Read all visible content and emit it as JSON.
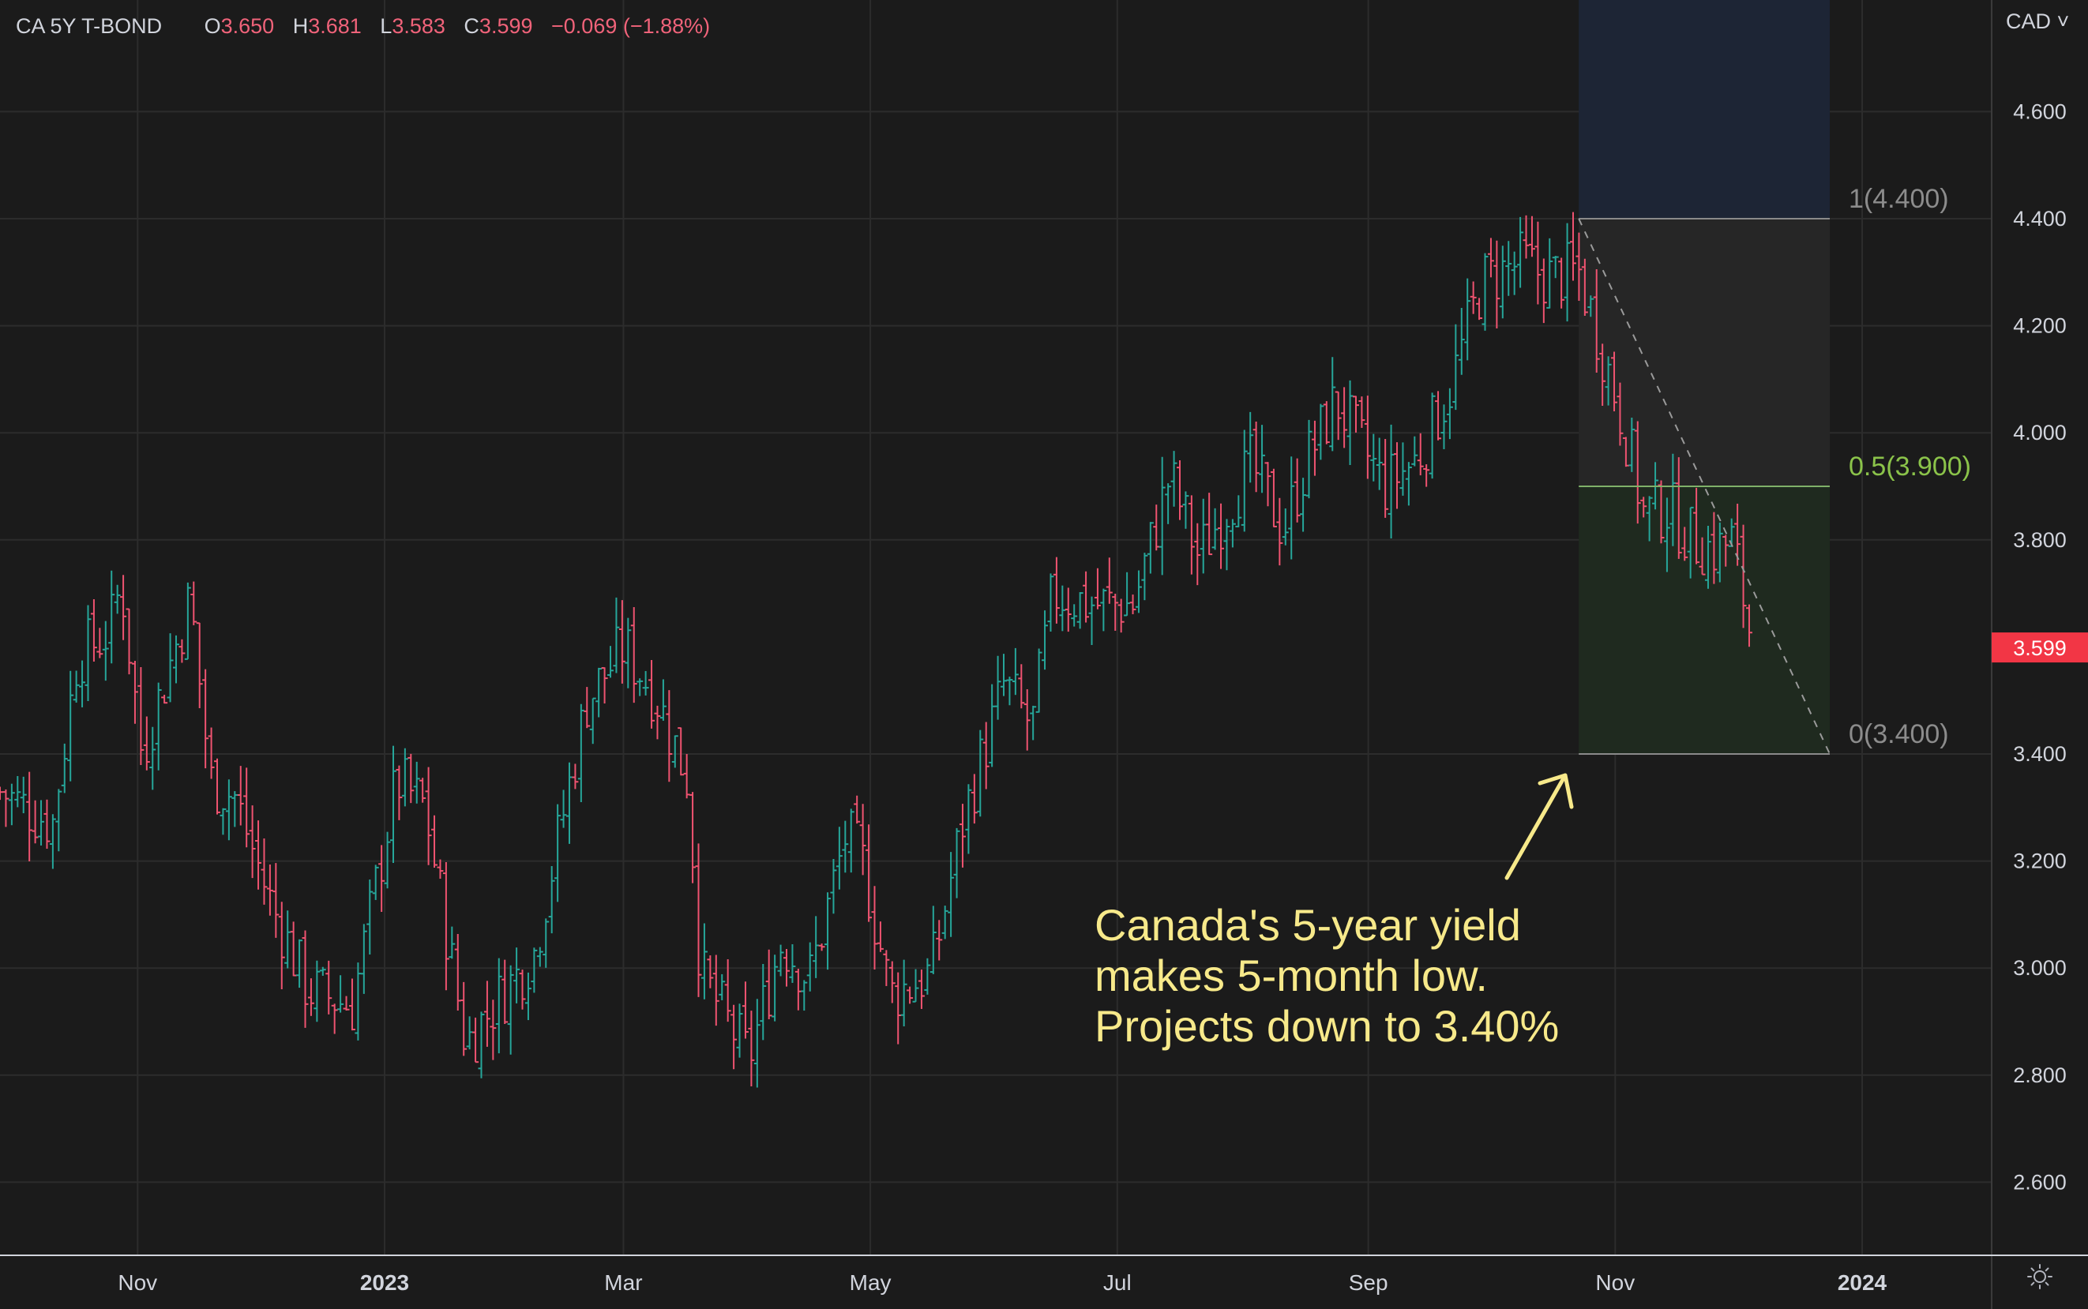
{
  "legend": {
    "symbol": "CA 5Y T-BOND",
    "open_label": "O",
    "open": "3.650",
    "high_label": "H",
    "high": "3.681",
    "low_label": "L",
    "low": "3.583",
    "close_label": "C",
    "close": "3.599",
    "change": "−0.069 (−1.88%)"
  },
  "currency": "CAD ˅",
  "annotation": {
    "lines": [
      "Canada's 5-year yield",
      "makes 5-month low.",
      "Projects down to 3.40%"
    ]
  },
  "colors": {
    "background": "#1b1b1b",
    "grid": "#2c2c2c",
    "up": "#26a69a",
    "down": "#ef5370",
    "annotation": "#f7e98a",
    "price_badge": "#f23645"
  },
  "chart_data": {
    "type": "ohlc",
    "title": "CA 5Y T-BOND",
    "currency": "CAD",
    "ylim": [
      2.5,
      4.75
    ],
    "y_ticks": [
      "4.600",
      "4.400",
      "4.200",
      "4.000",
      "3.800",
      "3.400",
      "3.200",
      "3.000",
      "2.800",
      "2.600"
    ],
    "current_price": "3.599",
    "x_range_days": [
      0,
      460
    ],
    "x_ticks": [
      {
        "label": "Nov",
        "day": 34,
        "bold": false
      },
      {
        "label": "2023",
        "day": 95,
        "bold": true
      },
      {
        "label": "Mar",
        "day": 154,
        "bold": false
      },
      {
        "label": "May",
        "day": 215,
        "bold": false
      },
      {
        "label": "Jul",
        "day": 276,
        "bold": false
      },
      {
        "label": "Sep",
        "day": 338,
        "bold": false
      },
      {
        "label": "Nov",
        "day": 399,
        "bold": false
      },
      {
        "label": "2024",
        "day": 460,
        "bold": true
      }
    ],
    "waypoints": [
      [
        0,
        3.33
      ],
      [
        13,
        3.27
      ],
      [
        19,
        3.58
      ],
      [
        27,
        3.63
      ],
      [
        30,
        3.72
      ],
      [
        35,
        3.4
      ],
      [
        47,
        3.69
      ],
      [
        52,
        3.35
      ],
      [
        58,
        3.32
      ],
      [
        67,
        3.12
      ],
      [
        76,
        2.96
      ],
      [
        87,
        2.93
      ],
      [
        98,
        3.35
      ],
      [
        105,
        3.3
      ],
      [
        115,
        2.86
      ],
      [
        124,
        2.95
      ],
      [
        132,
        3.03
      ],
      [
        145,
        3.5
      ],
      [
        154,
        3.6
      ],
      [
        162,
        3.51
      ],
      [
        170,
        3.35
      ],
      [
        173,
        2.99
      ],
      [
        185,
        2.83
      ],
      [
        193,
        3.05
      ],
      [
        200,
        2.98
      ],
      [
        209,
        3.25
      ],
      [
        213,
        3.2
      ],
      [
        220,
        2.95
      ],
      [
        230,
        2.99
      ],
      [
        238,
        3.28
      ],
      [
        248,
        3.53
      ],
      [
        255,
        3.45
      ],
      [
        260,
        3.7
      ],
      [
        270,
        3.68
      ],
      [
        280,
        3.68
      ],
      [
        289,
        3.92
      ],
      [
        296,
        3.77
      ],
      [
        309,
        3.94
      ],
      [
        317,
        3.82
      ],
      [
        323,
        3.95
      ],
      [
        330,
        4.06
      ],
      [
        342,
        3.9
      ],
      [
        350,
        3.95
      ],
      [
        358,
        4.08
      ],
      [
        366,
        4.28
      ],
      [
        376,
        4.32
      ],
      [
        382,
        4.29
      ],
      [
        390,
        4.3
      ],
      [
        396,
        4.15
      ],
      [
        401,
        4.02
      ],
      [
        406,
        3.85
      ],
      [
        412,
        3.86
      ],
      [
        418,
        3.8
      ],
      [
        424,
        3.78
      ],
      [
        428,
        3.8
      ],
      [
        432,
        3.64
      ],
      [
        433,
        3.6
      ]
    ],
    "forecast": {
      "start": {
        "day": 390,
        "value": 4.4
      },
      "end": {
        "day": 452,
        "value": 3.4
      },
      "levels": [
        {
          "ratio": "1",
          "value": 4.4,
          "label": "1(4.400)"
        },
        {
          "ratio": "0.5",
          "value": 3.9,
          "label": "0.5(3.900)"
        },
        {
          "ratio": "0",
          "value": 3.4,
          "label": "0(3.400)"
        }
      ]
    }
  }
}
